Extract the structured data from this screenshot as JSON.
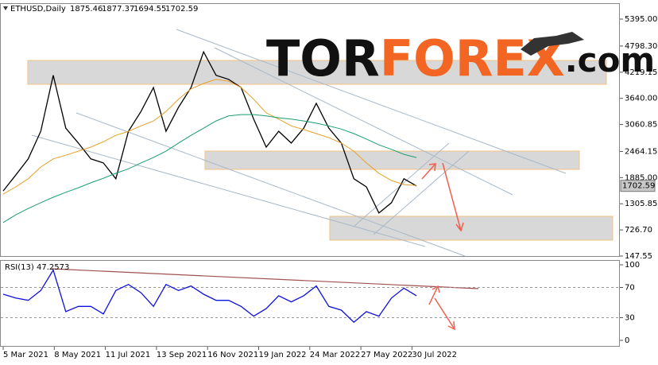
{
  "chart_data": [
    {
      "type": "line",
      "title": "ETHUSD,Daily",
      "header_values": [
        1875.46,
        1877.37,
        1694.55,
        1702.59
      ],
      "last_price": 1702.59,
      "watermark": [
        "TOR",
        "FOREX",
        ".com"
      ],
      "ylim": [
        130,
        5730
      ],
      "yticks": [
        {
          "value": 5395,
          "label": "5395.00"
        },
        {
          "value": 4798.3,
          "label": "4798.30"
        },
        {
          "value": 4219.15,
          "label": "4219.15"
        },
        {
          "value": 3640,
          "label": "3640.00"
        },
        {
          "value": 3060.85,
          "label": "3060.85"
        },
        {
          "value": 2464.15,
          "label": "2464.15"
        },
        {
          "value": 1885,
          "label": "1885.00"
        },
        {
          "value": 1305.85,
          "label": "1305.85"
        },
        {
          "value": 726.7,
          "label": "726.70"
        },
        {
          "value": 147.55,
          "label": "147.55"
        }
      ],
      "series": [
        {
          "color": "#000000",
          "values": [
            1590,
            1940,
            2300,
            2910,
            4150,
            2980,
            2650,
            2300,
            2210,
            1860,
            2910,
            3350,
            3880,
            2910,
            3440,
            3880,
            4670,
            4150,
            4060,
            3880,
            3180,
            2560,
            2910,
            2650,
            2980,
            3530,
            2980,
            2650,
            1860,
            1680,
            1100,
            1330,
            1860,
            1700
          ]
        },
        {
          "color": "#e8a028",
          "values": [
            1520,
            1680,
            1860,
            2120,
            2300,
            2380,
            2470,
            2560,
            2680,
            2820,
            2910,
            3030,
            3140,
            3350,
            3620,
            3850,
            3970,
            4060,
            4020,
            3880,
            3620,
            3320,
            3180,
            3030,
            2950,
            2860,
            2770,
            2650,
            2470,
            2210,
            1980,
            1820,
            1730,
            1710
          ]
        },
        {
          "color": "#1a9e6e",
          "values": [
            890,
            1060,
            1200,
            1330,
            1450,
            1560,
            1660,
            1770,
            1870,
            1980,
            2080,
            2210,
            2330,
            2470,
            2650,
            2820,
            2980,
            3140,
            3250,
            3280,
            3280,
            3250,
            3210,
            3180,
            3140,
            3090,
            3030,
            2960,
            2860,
            2740,
            2610,
            2510,
            2400,
            2330
          ]
        }
      ]
    },
    {
      "type": "line",
      "title": "RSI(13) 47.2573",
      "ylim": [
        -8.4,
        106.3
      ],
      "yticks": [
        100,
        70,
        30,
        0
      ],
      "xtick_labels": [
        "5 Mar 2021",
        "8 May 2021",
        "11 Jul 2021",
        "13 Sep 2021",
        "16 Nov 2021",
        "19 Jan 2022",
        "24 Mar 2022",
        "27 May 2022",
        "30 Jul 2022"
      ],
      "series": [
        {
          "color": "#1010e0",
          "values": [
            61,
            56,
            53,
            66,
            93,
            38,
            45,
            45,
            35,
            66,
            74,
            63,
            45,
            74,
            66,
            72,
            61,
            53,
            53,
            45,
            32,
            42,
            59,
            51,
            59,
            72,
            45,
            40,
            24,
            38,
            32,
            56,
            69,
            59
          ]
        }
      ]
    }
  ]
}
